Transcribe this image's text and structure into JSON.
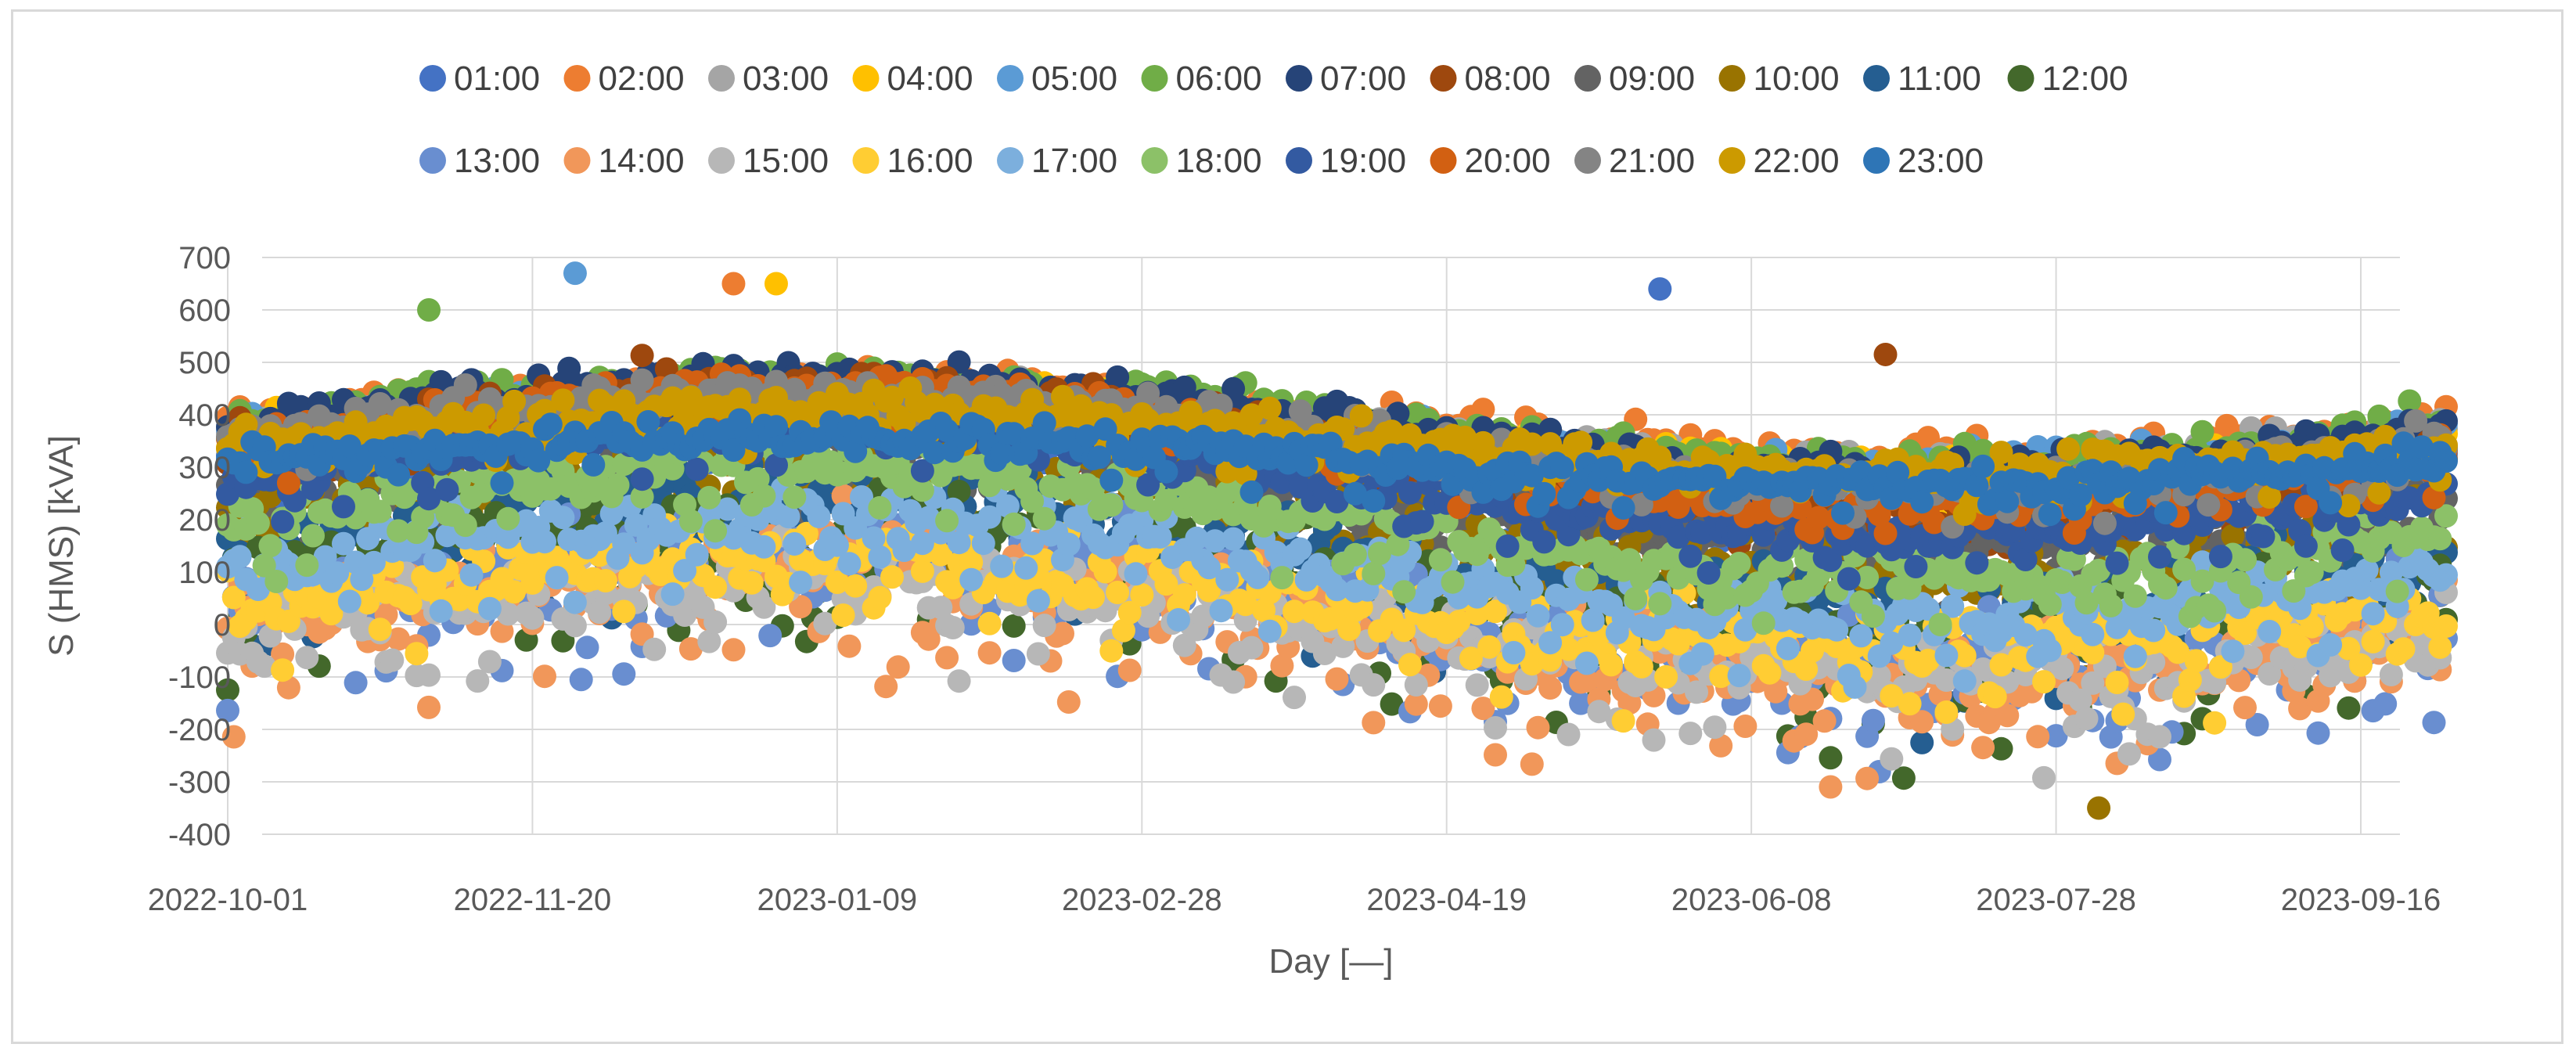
{
  "chart_data": {
    "type": "scatter",
    "title": "",
    "xlabel": "Day [—]",
    "ylabel": "S (HMS) [kVA]",
    "x_axis": {
      "kind": "date",
      "range": [
        "2022-10-01",
        "2023-09-30"
      ],
      "tick_labels": [
        "2022-10-01",
        "2022-11-20",
        "2023-01-09",
        "2023-02-28",
        "2023-04-19",
        "2023-06-08",
        "2023-07-28",
        "2023-09-16"
      ]
    },
    "ylim": [
      -400,
      700
    ],
    "y_ticks": [
      -400,
      -300,
      -200,
      -100,
      0,
      100,
      200,
      300,
      400,
      500,
      600,
      700
    ],
    "grid": "horizontal and vertical",
    "legend_position": "top",
    "series": [
      {
        "name": "01:00",
        "color": "#4472c4",
        "profile": {
          "level_winter": 380,
          "level_summer": 240,
          "spread": 65
        },
        "outliers": [
          {
            "x": "2023-05-24",
            "y": 640
          }
        ]
      },
      {
        "name": "02:00",
        "color": "#ed7d31",
        "profile": {
          "level_winter": 450,
          "level_summer": 320,
          "spread": 50
        },
        "outliers": [
          {
            "x": "2022-12-23",
            "y": 650
          }
        ]
      },
      {
        "name": "03:00",
        "color": "#a5a5a5",
        "profile": {
          "level_winter": 440,
          "level_summer": 300,
          "spread": 50
        }
      },
      {
        "name": "04:00",
        "color": "#ffc000",
        "profile": {
          "level_winter": 430,
          "level_summer": 290,
          "spread": 50
        },
        "outliers": [
          {
            "x": "2022-12-30",
            "y": 650
          }
        ]
      },
      {
        "name": "05:00",
        "color": "#5b9bd5",
        "profile": {
          "level_winter": 440,
          "level_summer": 290,
          "spread": 50
        },
        "outliers": [
          {
            "x": "2022-11-27",
            "y": 670
          }
        ]
      },
      {
        "name": "06:00",
        "color": "#70ad47",
        "profile": {
          "level_winter": 460,
          "level_summer": 300,
          "spread": 55
        },
        "outliers": [
          {
            "x": "2022-11-03",
            "y": 600
          }
        ]
      },
      {
        "name": "07:00",
        "color": "#264478",
        "profile": {
          "level_winter": 470,
          "level_summer": 290,
          "spread": 50
        }
      },
      {
        "name": "08:00",
        "color": "#9e480e",
        "profile": {
          "level_winter": 440,
          "level_summer": 200,
          "spread": 70
        },
        "outliers": [
          {
            "x": "2023-06-30",
            "y": 515
          }
        ]
      },
      {
        "name": "09:00",
        "color": "#636363",
        "profile": {
          "level_winter": 360,
          "level_summer": 150,
          "spread": 90
        }
      },
      {
        "name": "10:00",
        "color": "#997300",
        "profile": {
          "level_winter": 300,
          "level_summer": 80,
          "spread": 110
        },
        "outliers": [
          {
            "x": "2023-08-04",
            "y": -350
          }
        ]
      },
      {
        "name": "11:00",
        "color": "#255e91",
        "profile": {
          "level_winter": 230,
          "level_summer": 20,
          "spread": 120
        }
      },
      {
        "name": "12:00",
        "color": "#43682b",
        "profile": {
          "level_winter": 170,
          "level_summer": -40,
          "spread": 120
        }
      },
      {
        "name": "13:00",
        "color": "#698ed0",
        "profile": {
          "level_winter": 130,
          "level_summer": -80,
          "spread": 120
        }
      },
      {
        "name": "14:00",
        "color": "#f1975a",
        "profile": {
          "level_winter": 100,
          "level_summer": -110,
          "spread": 110
        }
      },
      {
        "name": "15:00",
        "color": "#b7b7b7",
        "profile": {
          "level_winter": 90,
          "level_summer": -90,
          "spread": 100
        }
      },
      {
        "name": "16:00",
        "color": "#ffcd33",
        "profile": {
          "level_winter": 120,
          "level_summer": -40,
          "spread": 90
        }
      },
      {
        "name": "17:00",
        "color": "#7cafdd",
        "profile": {
          "level_winter": 200,
          "level_summer": 10,
          "spread": 80
        }
      },
      {
        "name": "18:00",
        "color": "#8cc168",
        "profile": {
          "level_winter": 300,
          "level_summer": 90,
          "spread": 60
        }
      },
      {
        "name": "19:00",
        "color": "#335aa1",
        "profile": {
          "level_winter": 380,
          "level_summer": 170,
          "spread": 50
        }
      },
      {
        "name": "20:00",
        "color": "#d26012",
        "profile": {
          "level_winter": 450,
          "level_summer": 230,
          "spread": 45
        }
      },
      {
        "name": "21:00",
        "color": "#848484",
        "profile": {
          "level_winter": 440,
          "level_summer": 270,
          "spread": 45
        }
      },
      {
        "name": "22:00",
        "color": "#cc9a00",
        "profile": {
          "level_winter": 410,
          "level_summer": 290,
          "spread": 45
        }
      },
      {
        "name": "23:00",
        "color": "#2e75b6",
        "profile": {
          "level_winter": 360,
          "level_summer": 270,
          "spread": 40
        }
      }
    ]
  }
}
